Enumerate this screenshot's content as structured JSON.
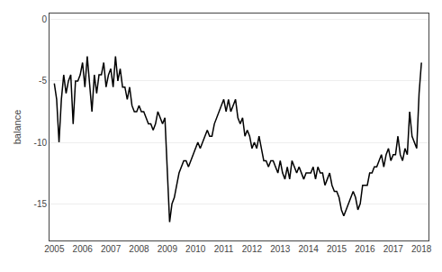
{
  "chart_data": {
    "type": "line",
    "ylabel": "balance",
    "color": "#000000",
    "grid": "y",
    "ylim": [
      -18,
      0.5
    ],
    "yticks": [
      0,
      -5,
      -10,
      -15
    ],
    "xlim": [
      2004.83,
      2018.25
    ],
    "xticks": [
      2005,
      2006,
      2007,
      2008,
      2009,
      2010,
      2011,
      2012,
      2013,
      2014,
      2015,
      2016,
      2017,
      2018
    ],
    "x": [
      2005.0,
      2005.083,
      2005.167,
      2005.25,
      2005.333,
      2005.417,
      2005.5,
      2005.583,
      2005.667,
      2005.75,
      2005.833,
      2005.917,
      2006.0,
      2006.083,
      2006.167,
      2006.25,
      2006.333,
      2006.417,
      2006.5,
      2006.583,
      2006.667,
      2006.75,
      2006.833,
      2006.917,
      2007.0,
      2007.083,
      2007.167,
      2007.25,
      2007.333,
      2007.417,
      2007.5,
      2007.583,
      2007.667,
      2007.75,
      2007.833,
      2007.917,
      2008.0,
      2008.083,
      2008.167,
      2008.25,
      2008.333,
      2008.417,
      2008.5,
      2008.583,
      2008.667,
      2008.75,
      2008.833,
      2008.917,
      2009.0,
      2009.083,
      2009.167,
      2009.25,
      2009.333,
      2009.417,
      2009.5,
      2009.583,
      2009.667,
      2009.75,
      2009.833,
      2009.917,
      2010.0,
      2010.083,
      2010.167,
      2010.25,
      2010.333,
      2010.417,
      2010.5,
      2010.583,
      2010.667,
      2010.75,
      2010.833,
      2010.917,
      2011.0,
      2011.083,
      2011.167,
      2011.25,
      2011.333,
      2011.417,
      2011.5,
      2011.583,
      2011.667,
      2011.75,
      2011.833,
      2011.917,
      2012.0,
      2012.083,
      2012.167,
      2012.25,
      2012.333,
      2012.417,
      2012.5,
      2012.583,
      2012.667,
      2012.75,
      2012.833,
      2012.917,
      2013.0,
      2013.083,
      2013.167,
      2013.25,
      2013.333,
      2013.417,
      2013.5,
      2013.583,
      2013.667,
      2013.75,
      2013.833,
      2013.917,
      2014.0,
      2014.083,
      2014.167,
      2014.25,
      2014.333,
      2014.417,
      2014.5,
      2014.583,
      2014.667,
      2014.75,
      2014.833,
      2014.917,
      2015.0,
      2015.083,
      2015.167,
      2015.25,
      2015.333,
      2015.417,
      2015.5,
      2015.583,
      2015.667,
      2015.75,
      2015.833,
      2015.917,
      2016.0,
      2016.083,
      2016.167,
      2016.25,
      2016.333,
      2016.417,
      2016.5,
      2016.583,
      2016.667,
      2016.75,
      2016.833,
      2016.917,
      2017.0,
      2017.083,
      2017.167,
      2017.25,
      2017.333,
      2017.417,
      2017.5,
      2017.583,
      2017.667,
      2017.75,
      2017.833,
      2017.917,
      2018.0
    ],
    "values": [
      -5.2,
      -6.5,
      -10.0,
      -6.5,
      -4.5,
      -6.0,
      -5.0,
      -4.5,
      -8.5,
      -5.0,
      -5.0,
      -4.5,
      -3.5,
      -5.5,
      -3.0,
      -5.5,
      -7.5,
      -4.5,
      -6.0,
      -4.5,
      -4.5,
      -3.5,
      -5.5,
      -4.5,
      -4.0,
      -5.5,
      -3.0,
      -5.0,
      -4.0,
      -5.5,
      -5.5,
      -6.5,
      -5.5,
      -7.0,
      -7.5,
      -7.5,
      -7.0,
      -7.5,
      -7.5,
      -8.0,
      -8.5,
      -8.5,
      -9.0,
      -8.5,
      -7.5,
      -8.0,
      -8.5,
      -8.0,
      -12.5,
      -16.5,
      -15.0,
      -14.5,
      -13.5,
      -12.5,
      -12.0,
      -11.5,
      -11.5,
      -12.0,
      -11.5,
      -11.0,
      -10.5,
      -10.0,
      -10.5,
      -10.0,
      -9.5,
      -9.0,
      -9.5,
      -9.5,
      -8.5,
      -8.0,
      -7.5,
      -7.0,
      -6.5,
      -7.5,
      -6.5,
      -7.5,
      -7.0,
      -6.5,
      -8.0,
      -8.5,
      -8.0,
      -9.5,
      -9.0,
      -9.5,
      -10.5,
      -10.0,
      -10.5,
      -9.5,
      -10.5,
      -11.5,
      -11.5,
      -12.0,
      -11.5,
      -11.5,
      -12.0,
      -12.5,
      -11.5,
      -12.5,
      -13.0,
      -12.0,
      -13.0,
      -11.5,
      -12.0,
      -12.5,
      -12.0,
      -12.5,
      -13.0,
      -12.5,
      -12.5,
      -12.5,
      -12.0,
      -13.0,
      -12.0,
      -12.5,
      -12.5,
      -13.5,
      -13.0,
      -12.5,
      -13.5,
      -14.0,
      -14.0,
      -14.5,
      -15.5,
      -16.0,
      -15.5,
      -15.0,
      -14.5,
      -14.0,
      -14.5,
      -15.5,
      -15.0,
      -13.5,
      -13.5,
      -13.5,
      -12.5,
      -12.5,
      -12.0,
      -12.0,
      -11.5,
      -11.0,
      -12.0,
      -11.0,
      -10.5,
      -11.5,
      -11.0,
      -11.0,
      -9.5,
      -11.0,
      -11.5,
      -10.5,
      -11.0,
      -7.5,
      -9.5,
      -10.0,
      -10.5,
      -6.0,
      -3.5
    ]
  }
}
